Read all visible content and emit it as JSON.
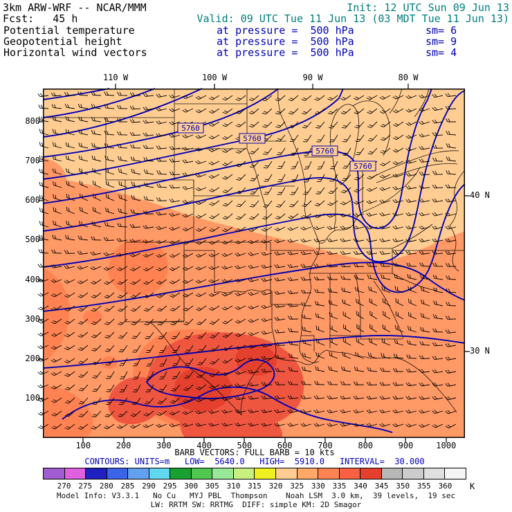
{
  "colors": {
    "teal": "#007C7C",
    "contour_blue": "#0000B4",
    "fill_sand": "#FFCD92",
    "fill_salmon": "#FF9966",
    "fill_deep_orange": "#FF8352",
    "fill_red": "#EF5640",
    "fill_dark_red": "#E5402E"
  },
  "header": {
    "model": "3km ARW-WRF -- NCAR/MMM",
    "init": "Init: 12 UTC Sun 09 Jun 13",
    "fcst": "Fcst:   45 h",
    "valid": "Valid: 09 UTC Tue 11 Jun 13 (03 MDT Tue 11 Jun 13)",
    "fields": [
      {
        "name": "Potential temperature",
        "at": "at pressure =  500 hPa",
        "sm": "sm= 6"
      },
      {
        "name": "Geopotential height",
        "at": "at pressure =  500 hPa",
        "sm": "sm= 9"
      },
      {
        "name": "Horizontal wind vectors",
        "at": "at pressure =  500 hPa",
        "sm": "sm= 4"
      }
    ]
  },
  "map": {
    "x_ticks": [
      "100",
      "200",
      "300",
      "400",
      "500",
      "600",
      "700",
      "800",
      "900",
      "1000"
    ],
    "y_ticks": [
      "800",
      "700",
      "600",
      "500",
      "400",
      "300",
      "200",
      "100"
    ],
    "lon_labels": [
      "110 W",
      "100 W",
      "90 W",
      "80 W"
    ],
    "lat_labels": [
      "40 N",
      "30 N"
    ],
    "contour_labels": [
      "5760",
      "5760",
      "5760",
      "5760"
    ]
  },
  "caption": {
    "barbs": "BARB VECTORS: FULL BARB = 10 kts",
    "contours": "CONTOURS: UNITS=m   LOW=  5640.0   HIGH=  5910.0   INTERVAL=  30.000"
  },
  "colorbar": {
    "tick_labels": [
      "270",
      "275",
      "280",
      "285",
      "290",
      "295",
      "300",
      "305",
      "310",
      "315",
      "320",
      "325",
      "330",
      "335",
      "340",
      "345",
      "350",
      "355",
      "360"
    ],
    "unit": "K",
    "cell_colors": [
      "#A05CD0",
      "#E060E0",
      "#2020C0",
      "#3C64E8",
      "#64A0F0",
      "#60D8F0",
      "#18A030",
      "#50C850",
      "#98E898",
      "#C8F080",
      "#F0F020",
      "#FFCD92",
      "#FFA868",
      "#FF8352",
      "#F86044",
      "#E5402E",
      "#B8B8B8",
      "#CCCCCC",
      "#E0E0E0",
      "#F4F4F4"
    ]
  },
  "footer": {
    "line1": "Model Info: V3.3.1   No Cu   MYJ PBL  Thompson    Noah LSM  3.0 km,  39 levels,  19 sec",
    "line2": "LW: RRTM SW: RRTMG  DIFF: simple KM: 2D Smagor"
  },
  "chart_data": {
    "type": "heatmap",
    "title": "3km ARW-WRF -- NCAR/MMM 45 h forecast at 500 hPa",
    "init": "12 UTC Sun 09 Jun 13",
    "valid": "09 UTC Tue 11 Jun 13 (03 MDT Tue 11 Jun 13)",
    "forecast_hour": 45,
    "fields": [
      {
        "name": "Potential temperature",
        "render": "color fill",
        "units": "K",
        "scale_min": 270,
        "scale_max": 360,
        "scale_step": 5,
        "smoothing": 6
      },
      {
        "name": "Geopotential height",
        "render": "blue contours",
        "units": "m",
        "low": 5640.0,
        "high": 5910.0,
        "interval": 30.0,
        "labeled_contour": 5760,
        "smoothing": 9
      },
      {
        "name": "Horizontal wind vectors",
        "render": "wind barbs",
        "full_barb_kts": 10,
        "smoothing": 4
      }
    ],
    "x_axis": {
      "ticks": [
        100,
        200,
        300,
        400,
        500,
        600,
        700,
        800,
        900,
        1000
      ]
    },
    "y_axis": {
      "ticks": [
        100,
        200,
        300,
        400,
        500,
        600,
        700,
        800
      ]
    },
    "longitude_ticks_deg_w": [
      110,
      100,
      90,
      80
    ],
    "latitude_ticks_deg_n": [
      40,
      30
    ],
    "legend_position": "bottom colorbar",
    "grid": false
  }
}
